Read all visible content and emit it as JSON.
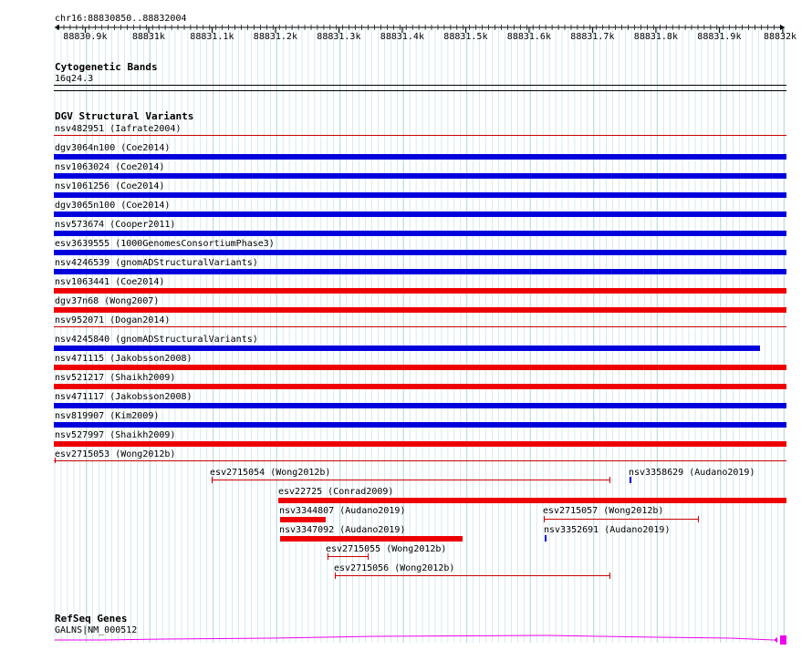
{
  "header": {
    "location": "chr16:88830850..88832004"
  },
  "ruler": {
    "ticks": [
      "88830.9k",
      "88831k",
      "88831.1k",
      "88831.2k",
      "88831.3k",
      "88831.4k",
      "88831.5k",
      "88831.6k",
      "88831.7k",
      "88831.8k",
      "88831.9k",
      "88832k"
    ]
  },
  "cytobands": {
    "title": "Cytogenetic Bands",
    "band": "16q24.3"
  },
  "dgv": {
    "title": "DGV Structural Variants",
    "variants": [
      {
        "label": "nsv482951 (Iafrate2004)",
        "color": "#cc0000",
        "style": "line"
      },
      {
        "label": "dgv3064n100 (Coe2014)",
        "color": "#0000dd",
        "style": "bar"
      },
      {
        "label": "nsv1063024 (Coe2014)",
        "color": "#0000dd",
        "style": "bar"
      },
      {
        "label": "nsv1061256 (Coe2014)",
        "color": "#0000dd",
        "style": "bar"
      },
      {
        "label": "dgv3065n100 (Coe2014)",
        "color": "#0000dd",
        "style": "bar"
      },
      {
        "label": "nsv573674 (Cooper2011)",
        "color": "#0000dd",
        "style": "bar"
      },
      {
        "label": "esv3639555 (1000GenomesConsortiumPhase3)",
        "color": "#0000dd",
        "style": "bar"
      },
      {
        "label": "nsv4246539 (gnomADStructuralVariants)",
        "color": "#0000dd",
        "style": "bar"
      },
      {
        "label": "nsv1063441 (Coe2014)",
        "color": "#ee0000",
        "style": "bar"
      },
      {
        "label": "dgv37n68 (Wong2007)",
        "color": "#ee0000",
        "style": "bar"
      },
      {
        "label": "nsv952071 (Dogan2014)",
        "color": "#cc0000",
        "style": "line"
      },
      {
        "label": "nsv4245840 (gnomADStructuralVariants)",
        "color": "#0000dd",
        "style": "bar"
      },
      {
        "label": "nsv471115 (Jakobsson2008)",
        "color": "#ee0000",
        "style": "bar"
      },
      {
        "label": "nsv521217 (Shaikh2009)",
        "color": "#ee0000",
        "style": "bar"
      },
      {
        "label": "nsv471117 (Jakobsson2008)",
        "color": "#0000dd",
        "style": "bar"
      },
      {
        "label": "nsv819907 (Kim2009)",
        "color": "#0000dd",
        "style": "bar"
      },
      {
        "label": "nsv527997 (Shaikh2009)",
        "color": "#ee0000",
        "style": "bar"
      },
      {
        "label": "esv2715053 (Wong2012b)",
        "color": "#cc0000",
        "style": "line"
      }
    ],
    "extra": [
      {
        "label": "esv2715054 (Wong2012b)",
        "color": "#cc0000",
        "style": "range"
      },
      {
        "label": "nsv3358629 (Audano2019)",
        "color": "#0000dd",
        "style": "tick"
      },
      {
        "label": "esv22725 (Conrad2009)",
        "color": "#ee0000",
        "style": "bar"
      },
      {
        "label": "nsv3344807 (Audano2019)",
        "color": "#ee0000",
        "style": "bar"
      },
      {
        "label": "esv2715057 (Wong2012b)",
        "color": "#cc0000",
        "style": "range"
      },
      {
        "label": "nsv3347092 (Audano2019)",
        "color": "#ee0000",
        "style": "bar"
      },
      {
        "label": "nsv3352691 (Audano2019)",
        "color": "#0000dd",
        "style": "tick"
      },
      {
        "label": "esv2715055 (Wong2012b)",
        "color": "#cc0000",
        "style": "range"
      },
      {
        "label": "esv2715056 (Wong2012b)",
        "color": "#cc0000",
        "style": "range"
      }
    ]
  },
  "refseq": {
    "title": "RefSeq Genes",
    "gene": "GALNS|NM_000512"
  },
  "colors": {
    "grid": "#a9d3dc",
    "gene": "#ee00ee",
    "blue": "#0000dd",
    "red": "#ee0000"
  }
}
